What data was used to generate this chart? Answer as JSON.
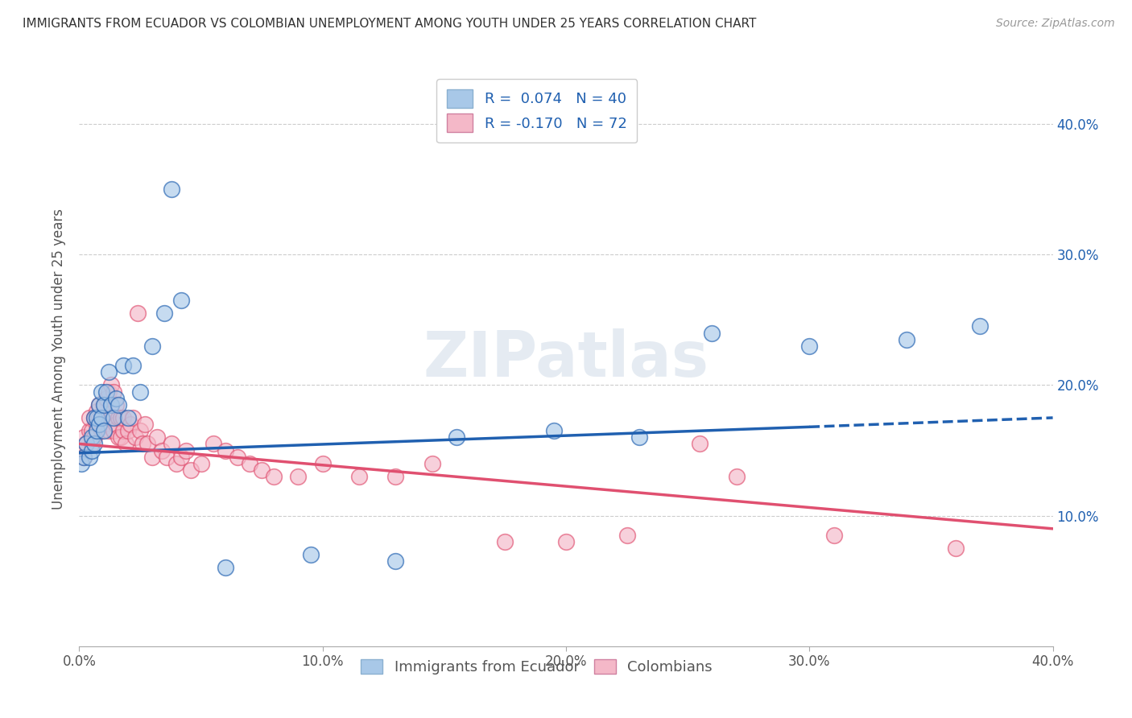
{
  "title": "IMMIGRANTS FROM ECUADOR VS COLOMBIAN UNEMPLOYMENT AMONG YOUTH UNDER 25 YEARS CORRELATION CHART",
  "source": "Source: ZipAtlas.com",
  "ylabel": "Unemployment Among Youth under 25 years",
  "xlim": [
    0.0,
    0.4
  ],
  "ylim": [
    0.0,
    0.44
  ],
  "xticks": [
    0.0,
    0.1,
    0.2,
    0.3,
    0.4
  ],
  "xtick_labels": [
    "0.0%",
    "10.0%",
    "20.0%",
    "30.0%",
    "40.0%"
  ],
  "yticks": [
    0.1,
    0.2,
    0.3,
    0.4
  ],
  "ytick_labels": [
    "10.0%",
    "20.0%",
    "30.0%",
    "40.0%"
  ],
  "blue_R": 0.074,
  "blue_N": 40,
  "pink_R": -0.17,
  "pink_N": 72,
  "blue_color": "#a8c8e8",
  "pink_color": "#f4b8c8",
  "blue_line_color": "#2060b0",
  "pink_line_color": "#e05070",
  "legend_label_blue": "Immigrants from Ecuador",
  "legend_label_pink": "Colombians",
  "blue_scatter_x": [
    0.001,
    0.002,
    0.003,
    0.004,
    0.005,
    0.005,
    0.006,
    0.006,
    0.007,
    0.007,
    0.008,
    0.008,
    0.009,
    0.009,
    0.01,
    0.01,
    0.011,
    0.012,
    0.013,
    0.014,
    0.015,
    0.016,
    0.018,
    0.02,
    0.022,
    0.025,
    0.03,
    0.035,
    0.038,
    0.042,
    0.06,
    0.095,
    0.13,
    0.155,
    0.195,
    0.23,
    0.26,
    0.3,
    0.34,
    0.37
  ],
  "blue_scatter_y": [
    0.14,
    0.145,
    0.155,
    0.145,
    0.15,
    0.16,
    0.155,
    0.175,
    0.165,
    0.175,
    0.17,
    0.185,
    0.175,
    0.195,
    0.165,
    0.185,
    0.195,
    0.21,
    0.185,
    0.175,
    0.19,
    0.185,
    0.215,
    0.175,
    0.215,
    0.195,
    0.23,
    0.255,
    0.35,
    0.265,
    0.06,
    0.07,
    0.065,
    0.16,
    0.165,
    0.16,
    0.24,
    0.23,
    0.235,
    0.245
  ],
  "pink_scatter_x": [
    0.001,
    0.002,
    0.002,
    0.003,
    0.004,
    0.004,
    0.005,
    0.005,
    0.006,
    0.006,
    0.007,
    0.007,
    0.008,
    0.008,
    0.009,
    0.009,
    0.01,
    0.01,
    0.011,
    0.011,
    0.012,
    0.012,
    0.013,
    0.013,
    0.014,
    0.014,
    0.015,
    0.015,
    0.016,
    0.016,
    0.017,
    0.017,
    0.018,
    0.018,
    0.019,
    0.02,
    0.021,
    0.022,
    0.023,
    0.024,
    0.025,
    0.026,
    0.027,
    0.028,
    0.03,
    0.032,
    0.034,
    0.036,
    0.038,
    0.04,
    0.042,
    0.044,
    0.046,
    0.05,
    0.055,
    0.06,
    0.065,
    0.07,
    0.075,
    0.08,
    0.09,
    0.1,
    0.115,
    0.13,
    0.145,
    0.175,
    0.2,
    0.225,
    0.255,
    0.27,
    0.31,
    0.36
  ],
  "pink_scatter_y": [
    0.15,
    0.145,
    0.16,
    0.155,
    0.165,
    0.175,
    0.155,
    0.165,
    0.16,
    0.175,
    0.17,
    0.18,
    0.175,
    0.185,
    0.165,
    0.175,
    0.17,
    0.185,
    0.175,
    0.19,
    0.195,
    0.165,
    0.175,
    0.2,
    0.165,
    0.195,
    0.17,
    0.185,
    0.175,
    0.16,
    0.175,
    0.16,
    0.165,
    0.175,
    0.155,
    0.165,
    0.17,
    0.175,
    0.16,
    0.255,
    0.165,
    0.155,
    0.17,
    0.155,
    0.145,
    0.16,
    0.15,
    0.145,
    0.155,
    0.14,
    0.145,
    0.15,
    0.135,
    0.14,
    0.155,
    0.15,
    0.145,
    0.14,
    0.135,
    0.13,
    0.13,
    0.14,
    0.13,
    0.13,
    0.14,
    0.08,
    0.08,
    0.085,
    0.155,
    0.13,
    0.085,
    0.075
  ],
  "blue_line_x0": 0.0,
  "blue_line_x_solid_end": 0.3,
  "blue_line_x_dashed_end": 0.4,
  "blue_line_y0": 0.148,
  "blue_line_y_solid_end": 0.168,
  "blue_line_y_dashed_end": 0.175,
  "pink_line_x0": 0.0,
  "pink_line_x_end": 0.4,
  "pink_line_y0": 0.155,
  "pink_line_y_end": 0.09
}
